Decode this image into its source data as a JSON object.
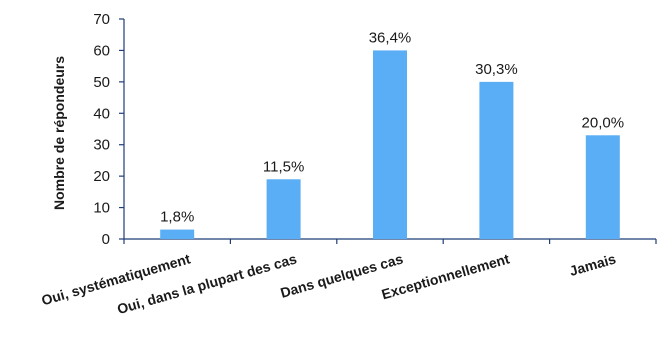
{
  "chart_data": {
    "type": "bar",
    "title": "",
    "xlabel": "",
    "ylabel": "Nombre de répondeurs",
    "ylim": [
      0,
      70
    ],
    "yticks": [
      0,
      10,
      20,
      30,
      40,
      50,
      60,
      70
    ],
    "grid": false,
    "legend": "none",
    "categories": [
      "Oui, systématiquement",
      "Oui, dans la plupart des cas",
      "Dans quelques cas",
      "Exceptionnellement",
      "Jamais"
    ],
    "values": [
      3,
      19,
      60,
      50,
      33
    ],
    "data_labels": [
      "1,8%",
      "11,5%",
      "36,4%",
      "30,3%",
      "20,0%"
    ],
    "bar_color": "#5aaef5",
    "axis_color": "#1f3e78"
  }
}
